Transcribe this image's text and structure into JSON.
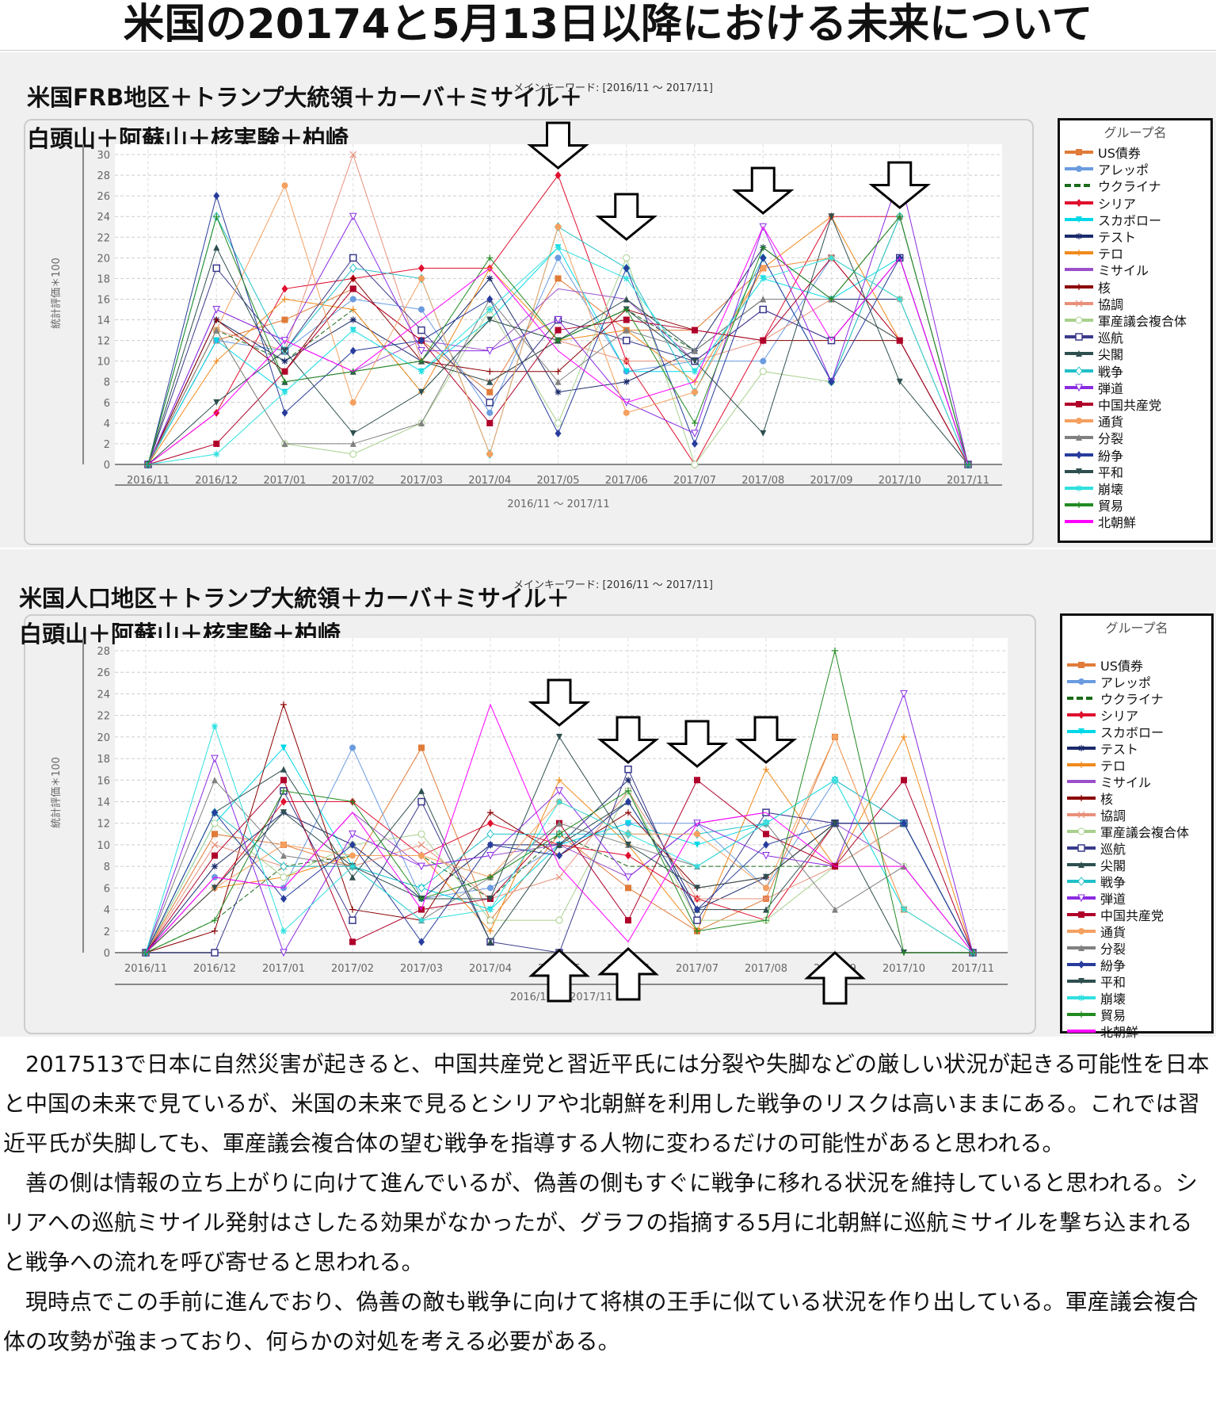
{
  "page_title": "米国の20174と5月13日以降における未来について",
  "legend_title": "グループ名",
  "series_names": [
    "US債券",
    "アレッポ",
    "ウクライナ",
    "シリア",
    "スカボロー",
    "テスト",
    "テロ",
    "ミサイル",
    "核",
    "協調",
    "軍産議会複合体",
    "巡航",
    "尖閣",
    "戦争",
    "弾道",
    "中国共産党",
    "通貨",
    "分裂",
    "紛争",
    "平和",
    "崩壊",
    "貿易",
    "北朝鮮"
  ],
  "series_colors": [
    "#e07b39",
    "#6a9be0",
    "#1a6b1a",
    "#e0102f",
    "#00d8e8",
    "#1a2a6b",
    "#f08a1c",
    "#9b4fc9",
    "#8b0000",
    "#e8907a",
    "#a8d08d",
    "#3a3a8c",
    "#2f4f4f",
    "#20c0c8",
    "#8a2be2",
    "#b0002a",
    "#f4a060",
    "#808080",
    "#283c9c",
    "#2f4f4f",
    "#30e0e0",
    "#228b22",
    "#ff00ff"
  ],
  "series_markers": [
    "square",
    "circle",
    "none",
    "diamond",
    "tridown",
    "star",
    "plus",
    "none",
    "plus",
    "x",
    "circle-open",
    "square-open",
    "triangle",
    "diamond-open",
    "tri-open",
    "square",
    "circle",
    "triangle",
    "diamond",
    "tridown",
    "star",
    "plus",
    "none"
  ],
  "charts": [
    {
      "label_line1": "米国FRB地区＋トランプ大統領＋カーバ＋ミサイル＋",
      "label_line2": "白頭山＋阿蘇山＋核実験＋柏崎",
      "keyword": "メインキーワード: [2016/11 ～ 2017/11]",
      "xaxis_title": "2016/11 ～ 2017/11",
      "yaxis_title": "統計評価＊100"
    },
    {
      "label_line1": "米国人口地区＋トランプ大統領＋カーバ＋ミサイル＋",
      "label_line2": "白頭山＋阿蘇山＋核実験＋柏崎",
      "keyword": "メインキーワード: [2016/11 ～ 2017/11]",
      "xaxis_title": "2016/11 ～ 2017/11",
      "yaxis_title": "統計評価＊100"
    }
  ],
  "chart_data": [
    {
      "type": "line",
      "xlabel": "2016/11 ～ 2017/11",
      "ylabel": "統計評価＊100",
      "ylim": [
        0,
        30
      ],
      "yticks": [
        0,
        2,
        4,
        6,
        8,
        10,
        12,
        14,
        16,
        18,
        20,
        22,
        24,
        26,
        28,
        30
      ],
      "grid": true,
      "legend": "right",
      "categories": [
        "2016/11",
        "2016/12",
        "2017/01",
        "2017/02",
        "2017/03",
        "2017/04",
        "2017/05",
        "2017/06",
        "2017/07",
        "2017/08",
        "2017/09",
        "2017/10",
        "2017/11"
      ],
      "down_arrows": [
        "2017/05",
        "2017/06",
        "2017/08",
        "2017/10"
      ],
      "up_arrows": [],
      "series": [
        {
          "name": "US債券",
          "values": [
            0,
            12,
            14,
            17,
            12,
            7,
            18,
            13,
            13,
            19,
            20,
            12,
            0
          ]
        },
        {
          "name": "アレッポ",
          "values": [
            0,
            12,
            11,
            16,
            15,
            5,
            20,
            9,
            10,
            10,
            20,
            16,
            0
          ]
        },
        {
          "name": "ウクライナ",
          "values": [
            0,
            13,
            10,
            15,
            7,
            14,
            12,
            15,
            11,
            16,
            16,
            24,
            0
          ]
        },
        {
          "name": "シリア",
          "values": [
            0,
            5,
            17,
            18,
            19,
            19,
            28,
            10,
            0,
            12,
            24,
            24,
            0
          ]
        },
        {
          "name": "スカボロー",
          "values": [
            0,
            12,
            7,
            13,
            9,
            14,
            21,
            9,
            9,
            18,
            16,
            20,
            0
          ]
        },
        {
          "name": "テスト",
          "values": [
            0,
            14,
            10,
            14,
            10,
            18,
            7,
            8,
            11,
            21,
            16,
            16,
            0
          ]
        },
        {
          "name": "テロ",
          "values": [
            0,
            10,
            16,
            15,
            7,
            19,
            12,
            13,
            8,
            19,
            24,
            12,
            0
          ]
        },
        {
          "name": "ミサイル",
          "values": [
            0,
            15,
            12,
            9,
            12,
            11,
            17,
            16,
            10,
            15,
            12,
            20,
            0
          ]
        },
        {
          "name": "核",
          "values": [
            0,
            14,
            9,
            18,
            10,
            9,
            9,
            15,
            13,
            12,
            12,
            12,
            0
          ]
        },
        {
          "name": "協調",
          "values": [
            0,
            13,
            11,
            30,
            10,
            8,
            12,
            10,
            10,
            12,
            16,
            12,
            0
          ]
        },
        {
          "name": "軍産議会複合体",
          "values": [
            0,
            13,
            2,
            1,
            4,
            15,
            4,
            20,
            0,
            9,
            8,
            24,
            0
          ]
        },
        {
          "name": "巡航",
          "values": [
            0,
            19,
            11,
            20,
            13,
            6,
            14,
            12,
            10,
            15,
            12,
            20,
            0
          ]
        },
        {
          "name": "尖閣",
          "values": [
            0,
            21,
            8,
            9,
            10,
            8,
            12,
            16,
            11,
            16,
            16,
            12,
            0
          ]
        },
        {
          "name": "戦争",
          "values": [
            0,
            24,
            11,
            19,
            18,
            1,
            23,
            19,
            7,
            20,
            8,
            24,
            0
          ]
        },
        {
          "name": "弾道",
          "values": [
            0,
            15,
            12,
            24,
            11,
            11,
            14,
            6,
            3,
            23,
            8,
            28,
            0
          ]
        },
        {
          "name": "中国共産党",
          "values": [
            0,
            2,
            9,
            17,
            12,
            4,
            13,
            14,
            13,
            12,
            20,
            12,
            0
          ]
        },
        {
          "name": "通貨",
          "values": [
            0,
            13,
            27,
            6,
            18,
            1,
            23,
            5,
            7,
            19,
            20,
            16,
            0
          ]
        },
        {
          "name": "分裂",
          "values": [
            0,
            13,
            2,
            2,
            4,
            16,
            8,
            13,
            11,
            16,
            16,
            24,
            0
          ]
        },
        {
          "name": "紛争",
          "values": [
            0,
            26,
            5,
            11,
            12,
            16,
            3,
            19,
            2,
            20,
            8,
            20,
            0
          ]
        },
        {
          "name": "平和",
          "values": [
            0,
            6,
            11,
            3,
            7,
            14,
            12,
            15,
            10,
            3,
            24,
            8,
            0
          ]
        },
        {
          "name": "崩壊",
          "values": [
            0,
            1,
            7,
            13,
            9,
            15,
            21,
            18,
            9,
            18,
            20,
            16,
            0
          ]
        },
        {
          "name": "貿易",
          "values": [
            0,
            24,
            8,
            9,
            10,
            20,
            12,
            15,
            4,
            21,
            16,
            24,
            0
          ]
        },
        {
          "name": "北朝鮮",
          "values": [
            0,
            5,
            12,
            9,
            14,
            19,
            11,
            6,
            8,
            23,
            12,
            20,
            0
          ]
        }
      ]
    },
    {
      "type": "line",
      "xlabel": "2016/11 ～ 2017/11",
      "ylabel": "統計評価＊100",
      "ylim": [
        0,
        28
      ],
      "yticks": [
        0,
        2,
        4,
        6,
        8,
        10,
        12,
        14,
        16,
        18,
        20,
        22,
        24,
        26,
        28
      ],
      "grid": true,
      "legend": "right",
      "categories": [
        "2016/11",
        "2016/12",
        "2017/01",
        "2017/02",
        "2017/03",
        "2017/04",
        "2017/05",
        "2017/06",
        "2017/07",
        "2017/08",
        "2017/09",
        "2017/10",
        "2017/11"
      ],
      "down_arrows": [
        "2017/05",
        "2017/06",
        "2017/07",
        "2017/08"
      ],
      "up_arrows": [
        "2017/05",
        "2017/06",
        "2017/09"
      ],
      "series": [
        {
          "name": "US債券",
          "values": [
            0,
            11,
            10,
            8,
            19,
            3,
            11,
            6,
            2,
            5,
            20,
            4,
            0
          ]
        },
        {
          "name": "アレッポ",
          "values": [
            0,
            7,
            6,
            19,
            5,
            6,
            10,
            12,
            12,
            6,
            16,
            12,
            0
          ]
        },
        {
          "name": "ウクライナ",
          "values": [
            0,
            3,
            8,
            9,
            9,
            5,
            11,
            8,
            8,
            8,
            8,
            12,
            0
          ]
        },
        {
          "name": "シリア",
          "values": [
            0,
            6,
            14,
            14,
            9,
            12,
            10,
            9,
            5,
            3,
            12,
            12,
            0
          ]
        },
        {
          "name": "スカボロー",
          "values": [
            0,
            12,
            19,
            8,
            6,
            4,
            10,
            12,
            10,
            12,
            16,
            4,
            0
          ]
        },
        {
          "name": "テスト",
          "values": [
            0,
            8,
            13,
            10,
            5,
            10,
            10,
            16,
            4,
            7,
            12,
            12,
            0
          ]
        },
        {
          "name": "テロ",
          "values": [
            0,
            6,
            7,
            9,
            9,
            2,
            16,
            10,
            2,
            17,
            8,
            20,
            0
          ]
        },
        {
          "name": "ミサイル",
          "values": [
            0,
            7,
            6,
            13,
            8,
            9,
            10,
            7,
            12,
            13,
            12,
            8,
            0
          ]
        },
        {
          "name": "核",
          "values": [
            0,
            2,
            23,
            4,
            3,
            13,
            9,
            13,
            6,
            7,
            12,
            12,
            0
          ]
        },
        {
          "name": "協調",
          "values": [
            0,
            10,
            8,
            8,
            10,
            5,
            7,
            15,
            5,
            5,
            8,
            12,
            0
          ]
        },
        {
          "name": "軍産議会複合体",
          "values": [
            0,
            12,
            7,
            10,
            11,
            3,
            3,
            15,
            3,
            3,
            8,
            8,
            0
          ]
        },
        {
          "name": "巡航",
          "values": [
            0,
            0,
            15,
            3,
            14,
            1,
            0,
            17,
            3,
            13,
            12,
            12,
            0
          ]
        },
        {
          "name": "尖閣",
          "values": [
            0,
            13,
            17,
            7,
            15,
            1,
            10,
            14,
            4,
            4,
            12,
            12,
            0
          ]
        },
        {
          "name": "戦争",
          "values": [
            0,
            13,
            8,
            8,
            6,
            11,
            11,
            11,
            11,
            12,
            16,
            12,
            0
          ]
        },
        {
          "name": "弾道",
          "values": [
            0,
            18,
            0,
            11,
            8,
            9,
            15,
            7,
            12,
            9,
            8,
            24,
            0
          ]
        },
        {
          "name": "中国共産党",
          "values": [
            0,
            9,
            16,
            1,
            4,
            5,
            12,
            3,
            16,
            11,
            8,
            16,
            0
          ]
        },
        {
          "name": "通貨",
          "values": [
            0,
            6,
            10,
            9,
            9,
            7,
            14,
            11,
            11,
            6,
            20,
            4,
            0
          ]
        },
        {
          "name": "分裂",
          "values": [
            0,
            16,
            9,
            8,
            3,
            7,
            12,
            10,
            8,
            12,
            4,
            8,
            0
          ]
        },
        {
          "name": "紛争",
          "values": [
            0,
            13,
            5,
            10,
            1,
            10,
            9,
            14,
            4,
            10,
            12,
            12,
            0
          ]
        },
        {
          "name": "平和",
          "values": [
            0,
            6,
            13,
            8,
            5,
            5,
            20,
            10,
            6,
            7,
            12,
            0,
            0
          ]
        },
        {
          "name": "崩壊",
          "values": [
            0,
            21,
            2,
            8,
            3,
            4,
            14,
            11,
            8,
            12,
            16,
            4,
            0
          ]
        },
        {
          "name": "貿易",
          "values": [
            0,
            3,
            15,
            14,
            5,
            7,
            11,
            15,
            2,
            3,
            28,
            0,
            0
          ]
        },
        {
          "name": "北朝鮮",
          "values": [
            0,
            7,
            6,
            13,
            4,
            23,
            8,
            1,
            12,
            13,
            8,
            8,
            0
          ]
        }
      ]
    }
  ],
  "paragraphs": [
    "2017513で日本に自然災害が起きると、中国共産党と習近平氏には分裂や失脚などの厳しい状況が起きる可能性を日本と中国の未来で見ているが、米国の未来で見るとシリアや北朝鮮を利用した戦争のリスクは高いままにある。これでは習近平氏が失脚しても、軍産議会複合体の望む戦争を指導する人物に変わるだけの可能性があると思われる。",
    "善の側は情報の立ち上がりに向けて進んでいるが、偽善の側もすぐに戦争に移れる状況を維持していると思われる。シリアへの巡航ミサイル発射はさしたる効果がなかったが、グラフの指摘する5月に北朝鮮に巡航ミサイルを撃ち込まれると戦争への流れを呼び寄せると思われる。",
    "現時点でこの手前に進んでおり、偽善の敵も戦争に向けて将棋の王手に似ている状況を作り出している。軍産議会複合体の攻勢が強まっており、何らかの対処を考える必要がある。"
  ]
}
